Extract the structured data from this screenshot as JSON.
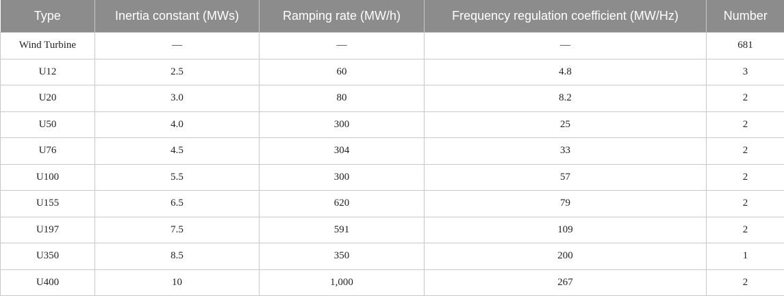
{
  "table": {
    "header": [
      "Type",
      "Inertia constant (MWs)",
      "Ramping rate (MW/h)",
      "Frequency regulation coefficient (MW/Hz)",
      "Number"
    ],
    "rows": [
      [
        "Wind Turbine",
        "—",
        "—",
        "—",
        "681"
      ],
      [
        "U12",
        "2.5",
        "60",
        "4.8",
        "3"
      ],
      [
        "U20",
        "3.0",
        "80",
        "8.2",
        "2"
      ],
      [
        "U50",
        "4.0",
        "300",
        "25",
        "2"
      ],
      [
        "U76",
        "4.5",
        "304",
        "33",
        "2"
      ],
      [
        "U100",
        "5.5",
        "300",
        "57",
        "2"
      ],
      [
        "U155",
        "6.5",
        "620",
        "79",
        "2"
      ],
      [
        "U197",
        "7.5",
        "591",
        "109",
        "2"
      ],
      [
        "U350",
        "8.5",
        "350",
        "200",
        "1"
      ],
      [
        "U400",
        "10",
        "1,000",
        "267",
        "2"
      ]
    ]
  }
}
